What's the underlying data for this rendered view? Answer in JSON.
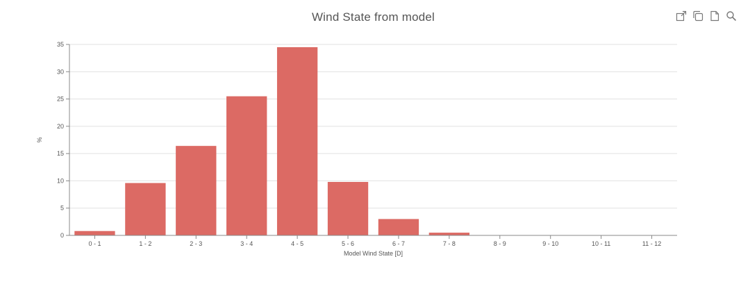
{
  "toolbar": {
    "icons": [
      "external-link-icon",
      "copy-icon",
      "document-icon",
      "search-icon"
    ]
  },
  "colors": {
    "bar": "#dc6a64",
    "grid": "#e1e1e1",
    "axis": "#888888",
    "text": "#555555"
  },
  "chart_data": {
    "type": "bar",
    "title": "Wind State from model",
    "xlabel": "Model Wind State [D]",
    "ylabel": "%",
    "categories": [
      "0 - 1",
      "1 - 2",
      "2 - 3",
      "3 - 4",
      "4 - 5",
      "5 - 6",
      "6 - 7",
      "7 - 8",
      "8 - 9",
      "9 - 10",
      "10 - 11",
      "11 - 12"
    ],
    "values": [
      0.8,
      9.6,
      16.4,
      25.5,
      34.5,
      9.8,
      3.0,
      0.5,
      0,
      0,
      0,
      0
    ],
    "ylim": [
      0,
      35
    ],
    "yticks": [
      0,
      5,
      10,
      15,
      20,
      25,
      30,
      35
    ],
    "grid": true,
    "legend": "none"
  }
}
